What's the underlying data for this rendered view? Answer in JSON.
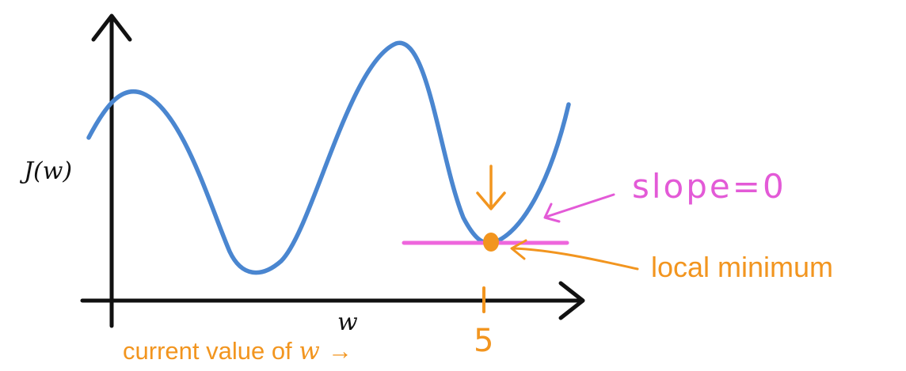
{
  "figure": {
    "y_axis_label": "J(w)",
    "x_axis_label": "w",
    "tick_label": "5",
    "slope_annotation": "slope=0",
    "minimum_annotation": "local minimum",
    "current_value_prefix": "current value of ",
    "current_value_var": "w",
    "current_value_arrow": "→"
  },
  "colors": {
    "axis": "#111111",
    "curve": "#4a86d0",
    "slope_line": "#ee66dd",
    "annotation_pink": "#e35ad7",
    "annotation_orange": "#f2951f",
    "point": "#f2951f"
  }
}
